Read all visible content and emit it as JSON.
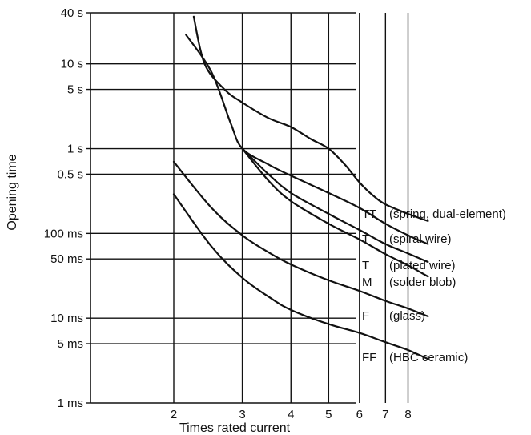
{
  "chart_data": {
    "type": "line",
    "title": "",
    "xlabel": "Times rated current",
    "ylabel": "Opening time",
    "x_scale": "log",
    "y_scale": "log",
    "xlim": [
      1.3,
      9
    ],
    "ylim_seconds": [
      0.001,
      40
    ],
    "grid": true,
    "x_ticks": [
      {
        "value": 2,
        "label": "2"
      },
      {
        "value": 3,
        "label": "3"
      },
      {
        "value": 4,
        "label": "4"
      },
      {
        "value": 5,
        "label": "5"
      },
      {
        "value": 6,
        "label": "6"
      },
      {
        "value": 7,
        "label": "7"
      },
      {
        "value": 8,
        "label": "8"
      }
    ],
    "y_ticks": [
      {
        "value": 40,
        "label": "40 s"
      },
      {
        "value": 10,
        "label": "10 s"
      },
      {
        "value": 5,
        "label": "5 s"
      },
      {
        "value": 1,
        "label": "1 s"
      },
      {
        "value": 0.5,
        "label": "0.5 s"
      },
      {
        "value": 0.1,
        "label": "100 ms"
      },
      {
        "value": 0.05,
        "label": "50 ms"
      },
      {
        "value": 0.01,
        "label": "10 ms"
      },
      {
        "value": 0.005,
        "label": "5 ms"
      },
      {
        "value": 0.001,
        "label": "1 ms"
      }
    ],
    "series": [
      {
        "name": "TT",
        "description": "(spring, dual-element)",
        "points": [
          [
            2.25,
            36
          ],
          [
            2.4,
            10
          ],
          [
            2.7,
            5
          ],
          [
            3,
            3.5
          ],
          [
            3.5,
            2.3
          ],
          [
            4,
            1.8
          ],
          [
            4.5,
            1.3
          ],
          [
            5,
            1
          ],
          [
            5.5,
            0.65
          ],
          [
            6,
            0.4
          ],
          [
            6.5,
            0.28
          ],
          [
            7,
            0.22
          ],
          [
            8,
            0.17
          ],
          [
            9,
            0.14
          ]
        ]
      },
      {
        "name": "T",
        "description": "(spiral wire)",
        "points": [
          [
            2.15,
            22
          ],
          [
            2.5,
            8
          ],
          [
            2.8,
            2
          ],
          [
            3,
            1
          ],
          [
            3.5,
            0.65
          ],
          [
            4,
            0.48
          ],
          [
            5,
            0.3
          ],
          [
            6,
            0.2
          ],
          [
            7,
            0.13
          ],
          [
            8,
            0.095
          ],
          [
            9,
            0.075
          ]
        ]
      },
      {
        "name": "T",
        "description": "(plated wire)",
        "points": [
          [
            3,
            1
          ],
          [
            3.5,
            0.5
          ],
          [
            4,
            0.3
          ],
          [
            5,
            0.17
          ],
          [
            6,
            0.11
          ],
          [
            7,
            0.075
          ],
          [
            8,
            0.058
          ],
          [
            9,
            0.046
          ]
        ]
      },
      {
        "name": "M",
        "description": "(solder blob)",
        "points": [
          [
            3,
            1
          ],
          [
            3.5,
            0.42
          ],
          [
            4,
            0.24
          ],
          [
            5,
            0.13
          ],
          [
            6,
            0.085
          ],
          [
            7,
            0.057
          ],
          [
            8,
            0.042
          ],
          [
            9,
            0.031
          ]
        ]
      },
      {
        "name": "F",
        "description": "(glass)",
        "points": [
          [
            2,
            0.7
          ],
          [
            2.5,
            0.2
          ],
          [
            3,
            0.095
          ],
          [
            3.5,
            0.06
          ],
          [
            4,
            0.043
          ],
          [
            5,
            0.028
          ],
          [
            6,
            0.021
          ],
          [
            7,
            0.016
          ],
          [
            8,
            0.013
          ],
          [
            9,
            0.0105
          ]
        ]
      },
      {
        "name": "FF",
        "description": "(HBC ceramic)",
        "points": [
          [
            2,
            0.29
          ],
          [
            2.5,
            0.07
          ],
          [
            3,
            0.03
          ],
          [
            3.5,
            0.018
          ],
          [
            4,
            0.0125
          ],
          [
            5,
            0.0085
          ],
          [
            6,
            0.0067
          ],
          [
            7,
            0.0052
          ],
          [
            8,
            0.0042
          ],
          [
            9,
            0.0033
          ]
        ]
      }
    ]
  }
}
